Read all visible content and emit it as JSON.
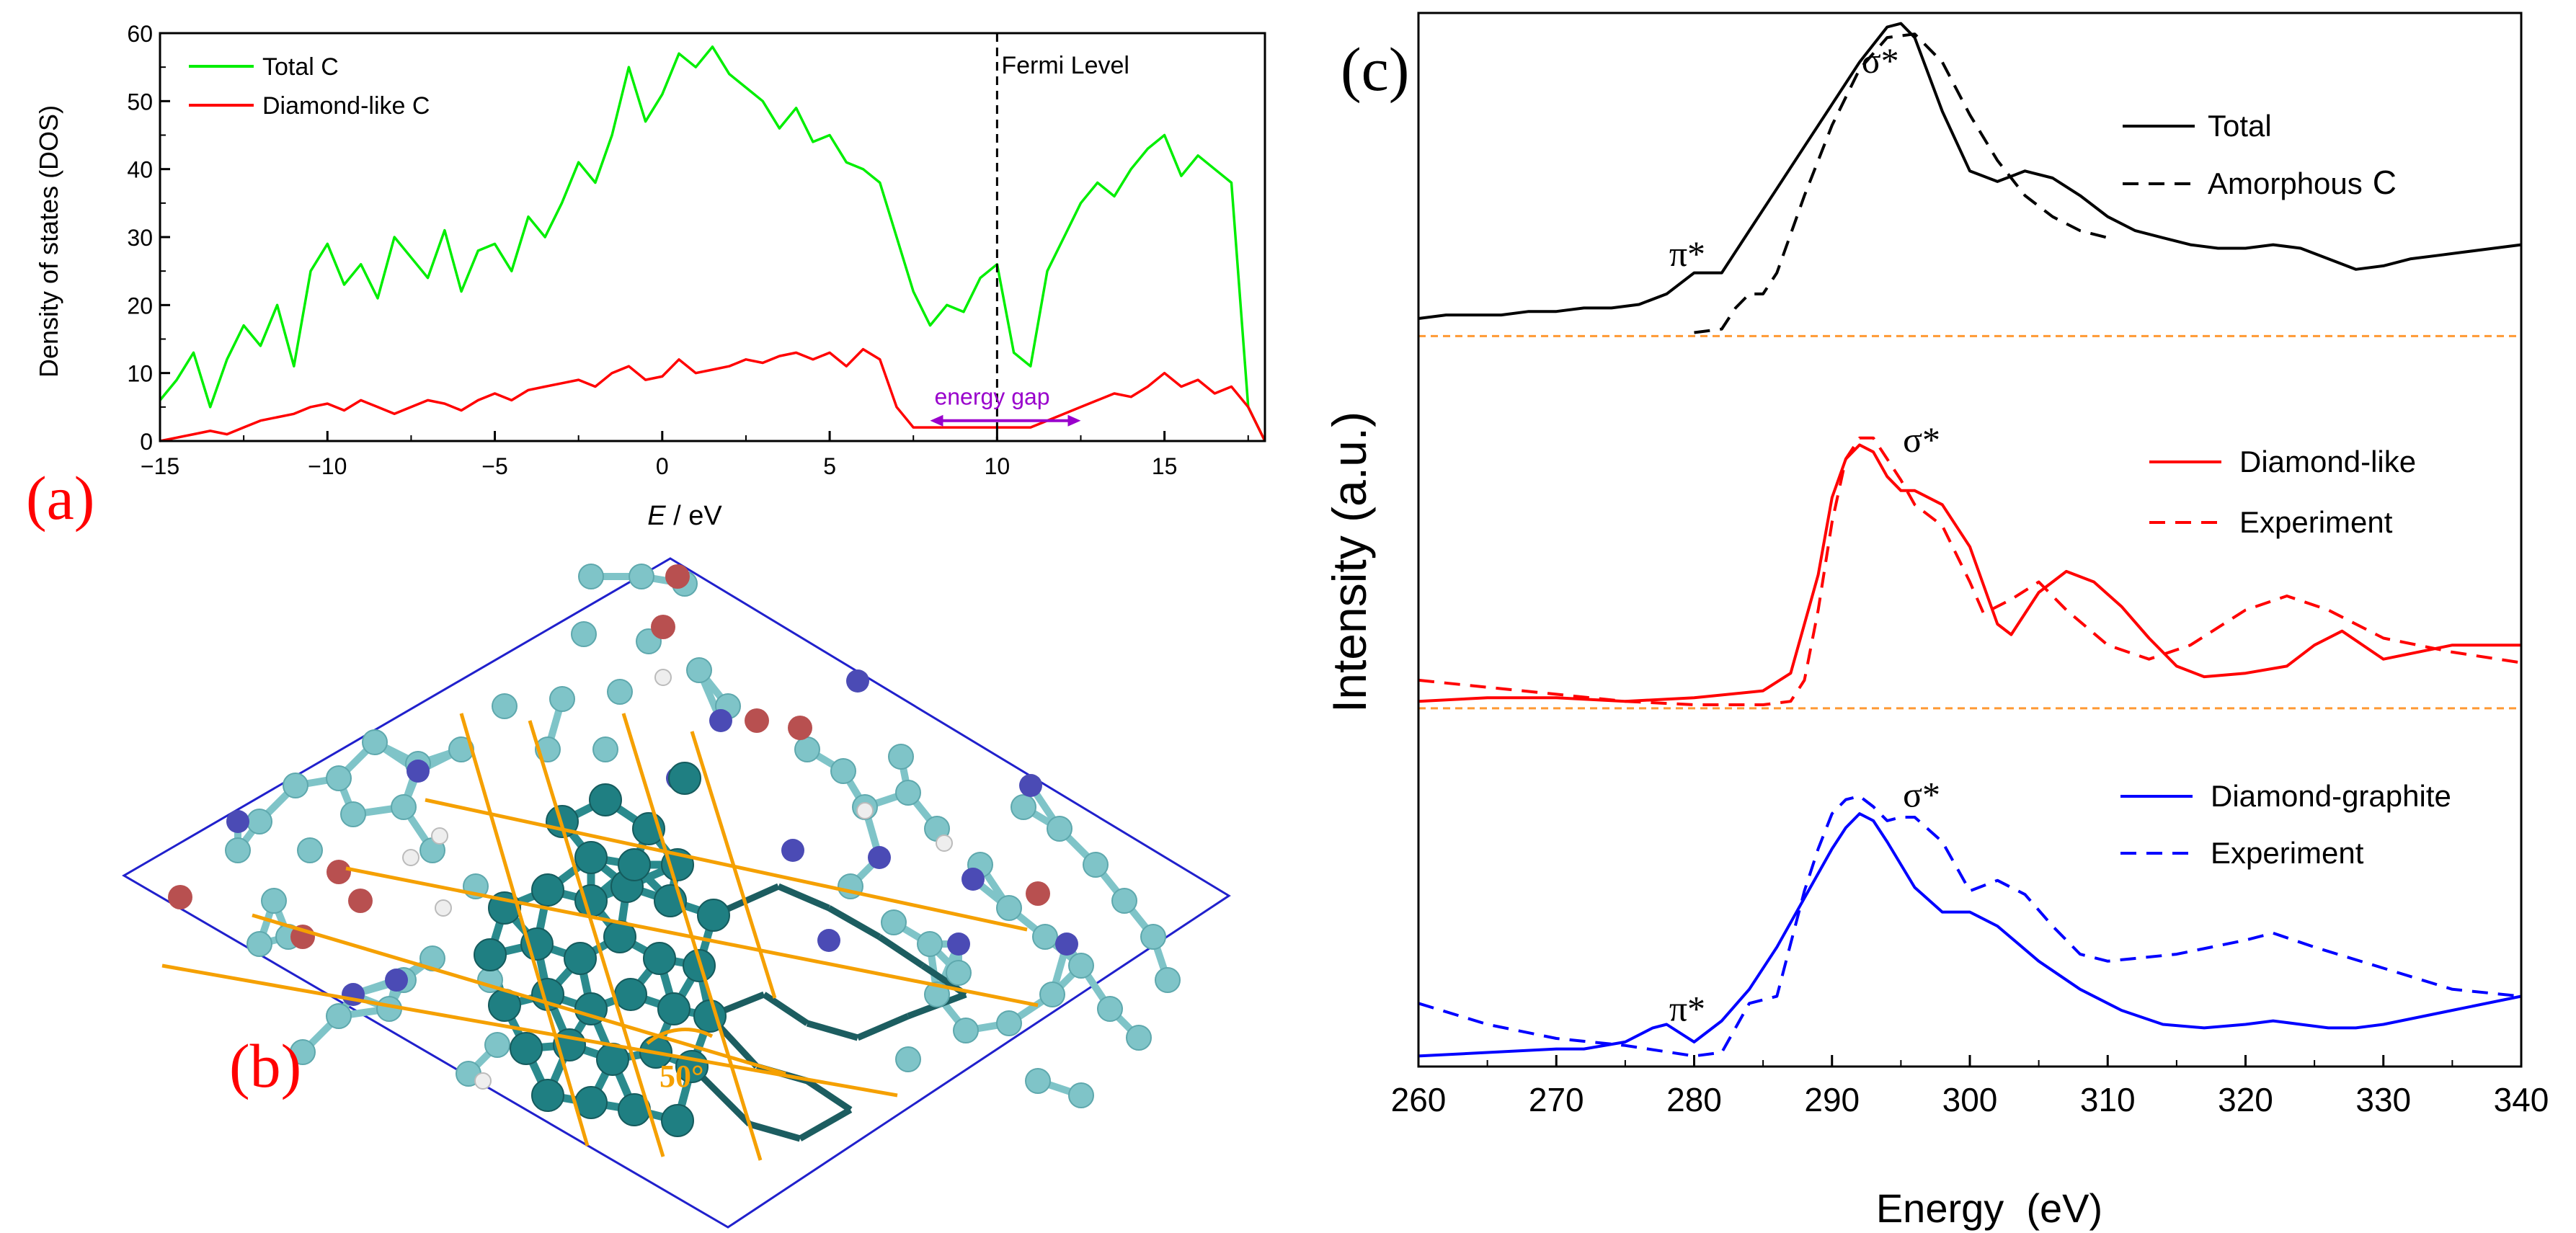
{
  "panel_labels": {
    "a": "(a)",
    "b": "(b)",
    "c": "(c)"
  },
  "colors": {
    "total": "#00ee00",
    "diamond_like": "#ff0000",
    "diamond_graphite": "#0000ff",
    "gap_arrow": "#9900cc",
    "angle_lines": "#f5a000",
    "separator": "#ff9933",
    "axis": "#000000"
  },
  "chart_data": [
    {
      "id": "dos",
      "type": "line",
      "title": "",
      "xlabel_italic": "E",
      "xlabel_rest": " / eV",
      "ylabel": "Density of states (DOS)",
      "xlim": [
        -15,
        18
      ],
      "ylim": [
        0,
        60
      ],
      "xticks": [
        -15,
        -10,
        -5,
        0,
        5,
        10,
        15
      ],
      "yticks": [
        0,
        10,
        20,
        30,
        40,
        50,
        60
      ],
      "legend": [
        "Total C",
        "Diamond-like C"
      ],
      "annotations": {
        "fermi": "Fermi Level",
        "fermi_x": 10,
        "gap": "energy gap",
        "gap_range": [
          8,
          12.5
        ],
        "gap_y": 3
      },
      "series": [
        {
          "name": "Total C",
          "x": [
            -15,
            -14.5,
            -14,
            -13.5,
            -13,
            -12.5,
            -12,
            -11.5,
            -11,
            -10.5,
            -10,
            -9.5,
            -9,
            -8.5,
            -8,
            -7.5,
            -7,
            -6.5,
            -6,
            -5.5,
            -5,
            -4.5,
            -4,
            -3.5,
            -3,
            -2.5,
            -2,
            -1.5,
            -1,
            -0.5,
            0,
            0.5,
            1,
            1.5,
            2,
            2.5,
            3,
            3.5,
            4,
            4.5,
            5,
            5.5,
            6,
            6.5,
            7,
            7.5,
            8,
            8.5,
            9,
            9.5,
            10,
            10.5,
            11,
            11.5,
            12,
            12.5,
            13,
            13.5,
            14,
            14.5,
            15,
            15.5,
            16,
            16.5,
            17,
            17.5,
            18
          ],
          "y": [
            6,
            9,
            13,
            5,
            12,
            17,
            14,
            20,
            11,
            25,
            29,
            23,
            26,
            21,
            30,
            27,
            24,
            31,
            22,
            28,
            29,
            25,
            33,
            30,
            35,
            41,
            38,
            45,
            55,
            47,
            51,
            57,
            55,
            58,
            54,
            52,
            50,
            46,
            49,
            44,
            45,
            41,
            40,
            38,
            30,
            22,
            17,
            20,
            19,
            24,
            26,
            13,
            11,
            25,
            30,
            35,
            38,
            36,
            40,
            43,
            45,
            39,
            42,
            40,
            38,
            5,
            0
          ]
        },
        {
          "name": "Diamond-like C",
          "x": [
            -15,
            -14.5,
            -14,
            -13.5,
            -13,
            -12.5,
            -12,
            -11.5,
            -11,
            -10.5,
            -10,
            -9.5,
            -9,
            -8.5,
            -8,
            -7.5,
            -7,
            -6.5,
            -6,
            -5.5,
            -5,
            -4.5,
            -4,
            -3.5,
            -3,
            -2.5,
            -2,
            -1.5,
            -1,
            -0.5,
            0,
            0.5,
            1,
            1.5,
            2,
            2.5,
            3,
            3.5,
            4,
            4.5,
            5,
            5.5,
            6,
            6.5,
            7,
            7.5,
            8,
            8.5,
            9,
            9.5,
            10,
            10.5,
            11,
            11.5,
            12,
            12.5,
            13,
            13.5,
            14,
            14.5,
            15,
            15.5,
            16,
            16.5,
            17,
            17.5,
            18
          ],
          "y": [
            0,
            0.5,
            1,
            1.5,
            1,
            2,
            3,
            3.5,
            4,
            5,
            5.5,
            4.5,
            6,
            5,
            4,
            5,
            6,
            5.5,
            4.5,
            6,
            7,
            6,
            7.5,
            8,
            8.5,
            9,
            8,
            10,
            11,
            9,
            9.5,
            12,
            10,
            10.5,
            11,
            12,
            11.5,
            12.5,
            13,
            12,
            13,
            11,
            13.5,
            12,
            5,
            2,
            2,
            2,
            2,
            2,
            2,
            2,
            2,
            3,
            4,
            5,
            6,
            7,
            6.5,
            8,
            10,
            8,
            9,
            7,
            8,
            5,
            0
          ]
        }
      ]
    },
    {
      "id": "xas",
      "type": "line",
      "title": "",
      "xlabel": "Energy  (eV)",
      "ylabel": "Intensity (a.u.)",
      "xlim": [
        260,
        340
      ],
      "ylim": [
        0,
        3
      ],
      "xticks": [
        260,
        270,
        280,
        290,
        300,
        310,
        320,
        330,
        340
      ],
      "yticks": [],
      "separators": [
        2.08,
        1.02
      ],
      "legend": [
        {
          "label": "Total",
          "style": "solid",
          "color": "#000000"
        },
        {
          "label": "Amorphous",
          "label_suffix": "C",
          "style": "dashed",
          "color": "#000000"
        },
        {
          "label": "Diamond-like",
          "style": "solid",
          "color": "#ff0000"
        },
        {
          "label": "Experiment",
          "style": "dashed",
          "color": "#ff0000"
        },
        {
          "label": "Diamond-graphite",
          "style": "solid",
          "color": "#0000ff"
        },
        {
          "label": "Experiment",
          "style": "dashed",
          "color": "#0000ff"
        }
      ],
      "annotations": [
        {
          "text": "σ*",
          "x": 293.5,
          "y": 2.83
        },
        {
          "text": "π*",
          "x": 279.5,
          "y": 2.28
        },
        {
          "text": "σ*",
          "x": 296.5,
          "y": 1.75
        },
        {
          "text": "σ*",
          "x": 296.5,
          "y": 0.74
        },
        {
          "text": "π*",
          "x": 279.5,
          "y": 0.13
        }
      ],
      "series": [
        {
          "name": "Total",
          "style": "solid",
          "color": "#000000",
          "x": [
            260,
            262,
            264,
            266,
            268,
            270,
            272,
            274,
            276,
            278,
            280,
            282,
            284,
            286,
            288,
            290,
            292,
            294,
            295,
            296,
            298,
            300,
            302,
            304,
            306,
            308,
            310,
            312,
            314,
            316,
            318,
            320,
            322,
            324,
            326,
            328,
            330,
            332,
            334,
            336,
            338,
            340
          ],
          "y": [
            2.13,
            2.14,
            2.14,
            2.14,
            2.15,
            2.15,
            2.16,
            2.16,
            2.17,
            2.2,
            2.26,
            2.26,
            2.38,
            2.5,
            2.62,
            2.74,
            2.86,
            2.96,
            2.97,
            2.93,
            2.72,
            2.55,
            2.52,
            2.55,
            2.53,
            2.48,
            2.42,
            2.38,
            2.36,
            2.34,
            2.33,
            2.33,
            2.34,
            2.33,
            2.3,
            2.27,
            2.28,
            2.3,
            2.31,
            2.32,
            2.33,
            2.34
          ]
        },
        {
          "name": "Amorphous C",
          "style": "dashed",
          "color": "#000000",
          "x": [
            280,
            282,
            283,
            284,
            285,
            286,
            288,
            290,
            292,
            294,
            296,
            298,
            300,
            302,
            304,
            306,
            308,
            310
          ],
          "y": [
            2.09,
            2.1,
            2.16,
            2.2,
            2.2,
            2.26,
            2.48,
            2.68,
            2.84,
            2.93,
            2.94,
            2.86,
            2.71,
            2.58,
            2.48,
            2.42,
            2.38,
            2.36
          ]
        },
        {
          "name": "Diamond-like",
          "style": "solid",
          "color": "#ff0000",
          "x": [
            260,
            265,
            270,
            275,
            280,
            285,
            287,
            289,
            290,
            291,
            292,
            293,
            294,
            295,
            296,
            298,
            300,
            302,
            303,
            305,
            307,
            309,
            311,
            313,
            315,
            317,
            320,
            323,
            325,
            327,
            330,
            335,
            340
          ],
          "y": [
            1.04,
            1.05,
            1.05,
            1.04,
            1.05,
            1.07,
            1.12,
            1.4,
            1.62,
            1.73,
            1.77,
            1.75,
            1.68,
            1.64,
            1.64,
            1.6,
            1.48,
            1.26,
            1.23,
            1.35,
            1.41,
            1.38,
            1.31,
            1.22,
            1.14,
            1.11,
            1.12,
            1.14,
            1.2,
            1.24,
            1.16,
            1.2,
            1.2
          ]
        },
        {
          "name": "Experiment",
          "style": "dashed",
          "color": "#ff0000",
          "x": [
            260,
            265,
            270,
            275,
            280,
            285,
            287,
            288,
            289,
            290,
            291,
            292,
            293,
            294,
            295,
            296,
            298,
            300,
            301,
            303,
            305,
            307,
            310,
            313,
            316,
            320,
            323,
            326,
            330,
            335,
            340
          ],
          "y": [
            1.1,
            1.08,
            1.06,
            1.04,
            1.03,
            1.03,
            1.04,
            1.1,
            1.3,
            1.55,
            1.73,
            1.79,
            1.79,
            1.73,
            1.67,
            1.6,
            1.54,
            1.38,
            1.29,
            1.33,
            1.38,
            1.3,
            1.2,
            1.16,
            1.2,
            1.3,
            1.34,
            1.3,
            1.22,
            1.18,
            1.15
          ]
        },
        {
          "name": "Diamond-graphite",
          "style": "solid",
          "color": "#0000ff",
          "x": [
            260,
            265,
            270,
            272,
            275,
            277,
            278,
            280,
            282,
            284,
            286,
            288,
            290,
            291,
            292,
            293,
            294,
            296,
            298,
            300,
            302,
            305,
            308,
            311,
            314,
            317,
            320,
            322,
            324,
            326,
            328,
            330,
            335,
            340
          ],
          "y": [
            0.03,
            0.04,
            0.05,
            0.05,
            0.07,
            0.11,
            0.12,
            0.07,
            0.13,
            0.22,
            0.34,
            0.48,
            0.62,
            0.68,
            0.72,
            0.7,
            0.64,
            0.51,
            0.44,
            0.44,
            0.4,
            0.3,
            0.22,
            0.16,
            0.12,
            0.11,
            0.12,
            0.13,
            0.12,
            0.11,
            0.11,
            0.12,
            0.16,
            0.2
          ]
        },
        {
          "name": "Experiment",
          "style": "dashed",
          "color": "#0000ff",
          "x": [
            260,
            265,
            270,
            275,
            280,
            282,
            284,
            286,
            287,
            288,
            289,
            290,
            291,
            292,
            293,
            294,
            295,
            296,
            298,
            300,
            302,
            304,
            306,
            308,
            310,
            315,
            320,
            322,
            325,
            330,
            335,
            340
          ],
          "y": [
            0.18,
            0.12,
            0.08,
            0.06,
            0.03,
            0.04,
            0.18,
            0.2,
            0.35,
            0.5,
            0.62,
            0.72,
            0.76,
            0.77,
            0.74,
            0.7,
            0.71,
            0.71,
            0.64,
            0.5,
            0.53,
            0.49,
            0.4,
            0.32,
            0.3,
            0.32,
            0.36,
            0.38,
            0.34,
            0.28,
            0.22,
            0.2
          ]
        }
      ]
    }
  ],
  "structure": {
    "angle_label": "50°"
  }
}
